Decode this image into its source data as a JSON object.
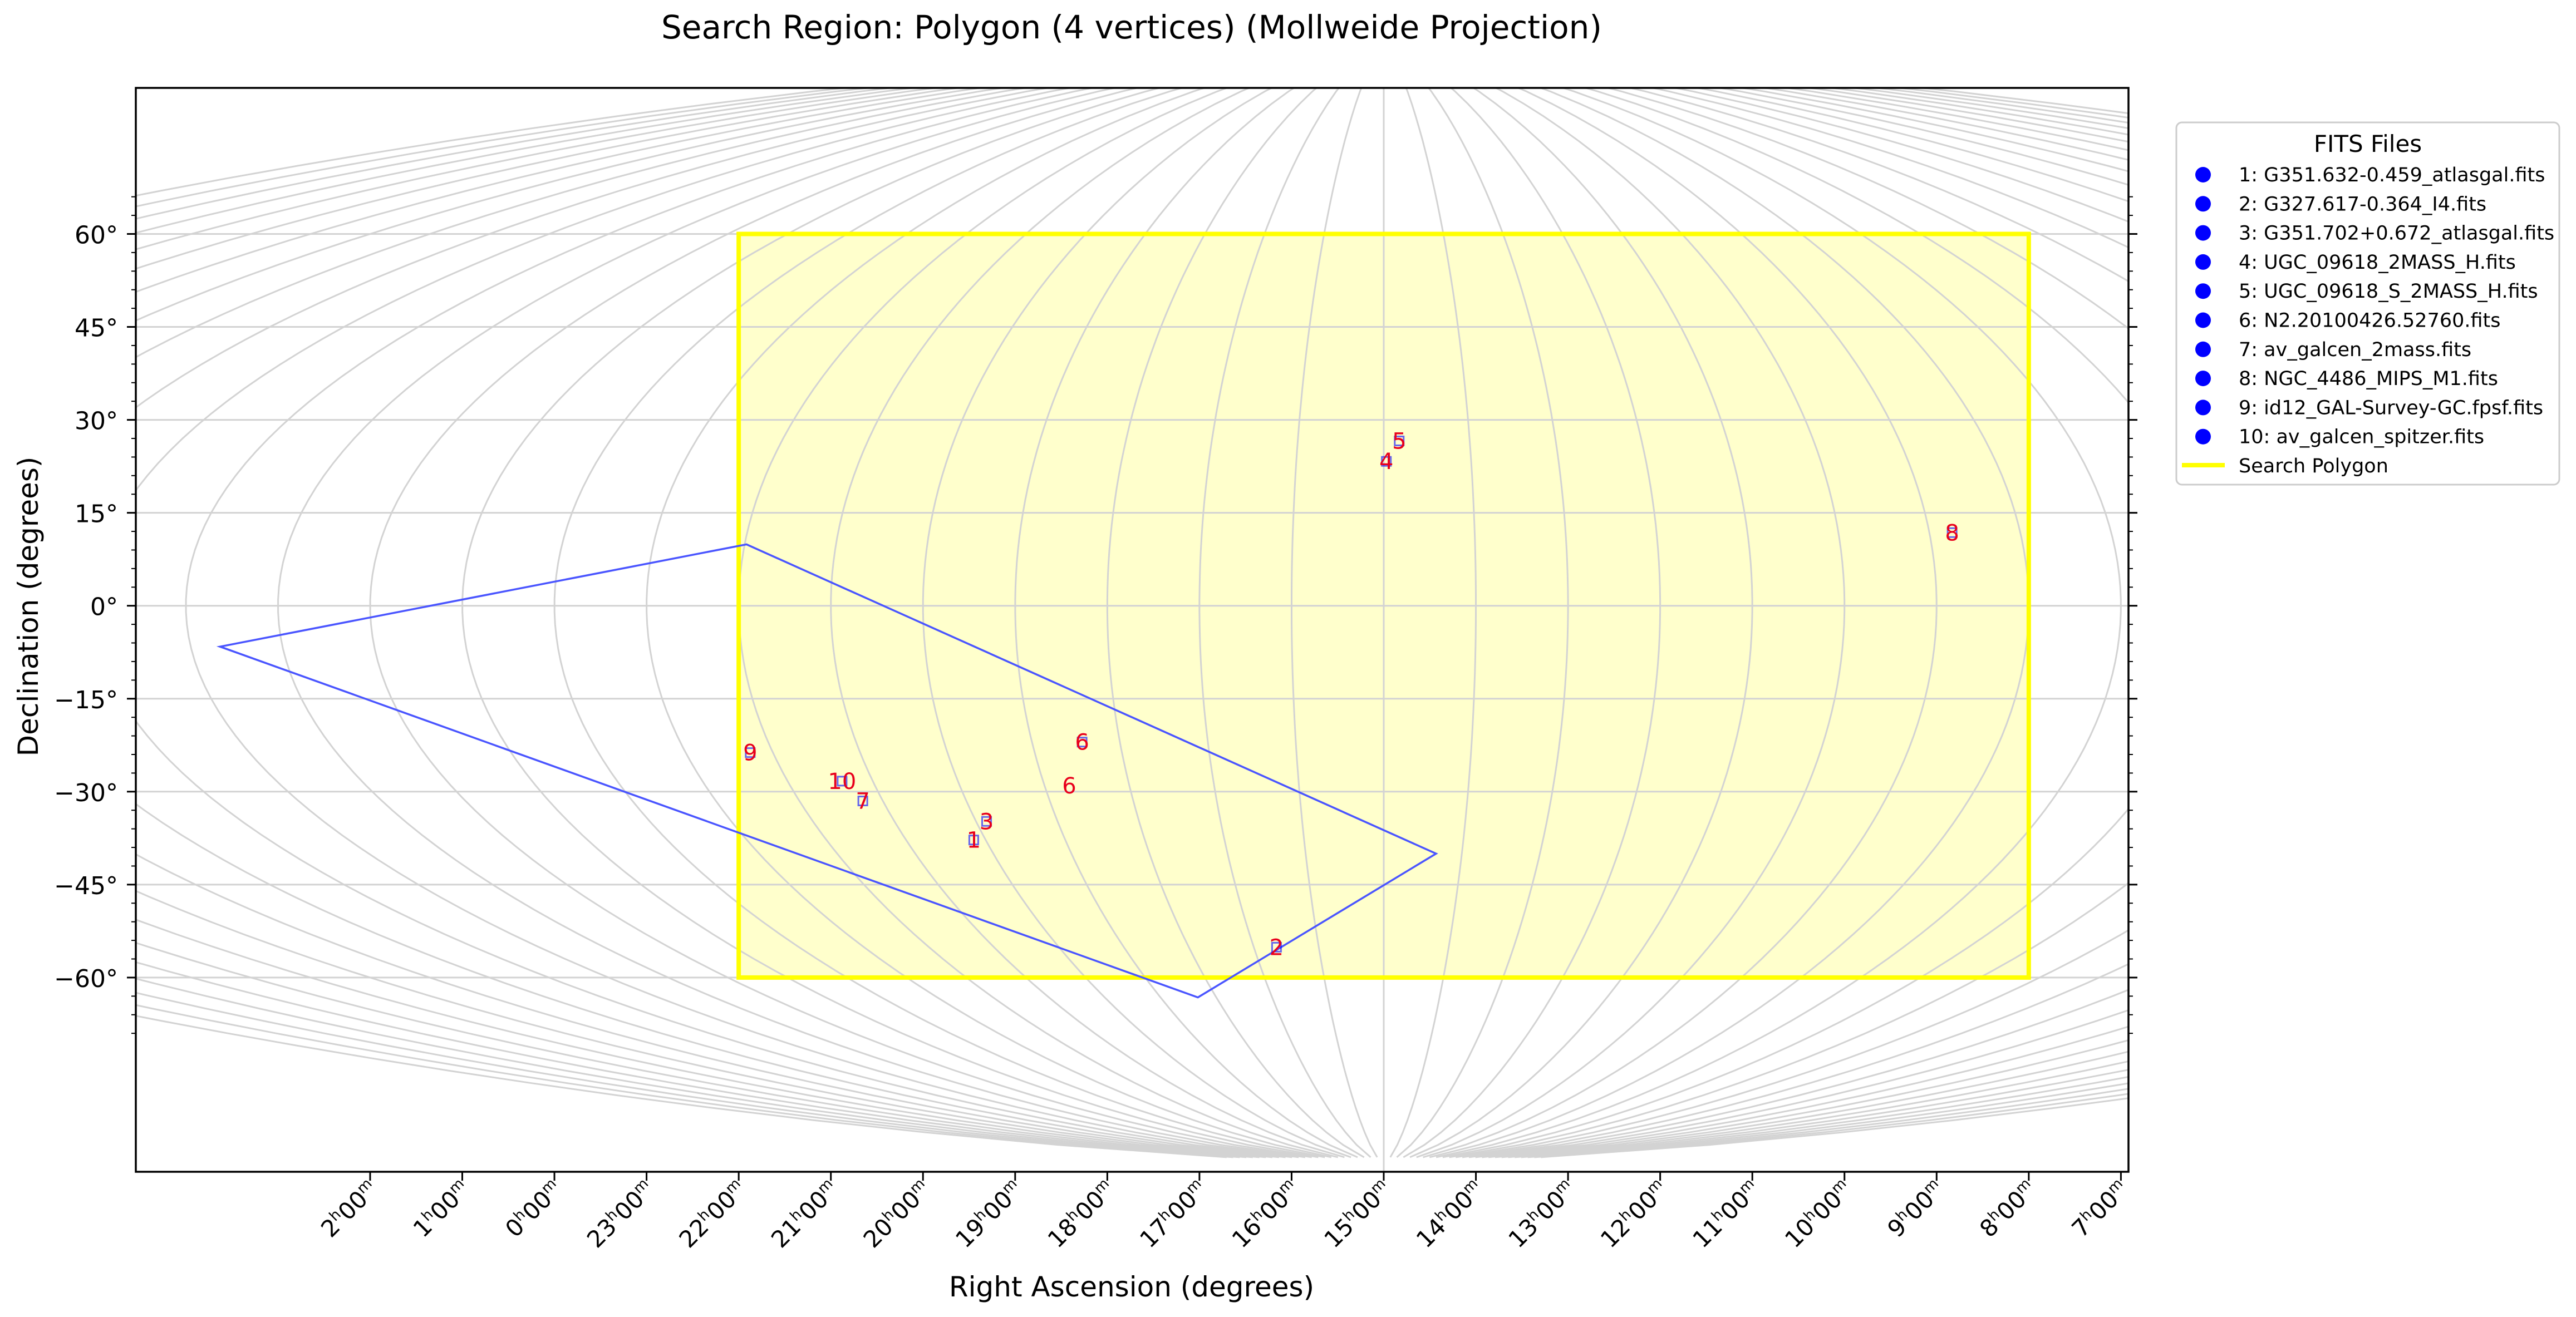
{
  "chart_data": {
    "type": "scatter",
    "title": "Search Region: Polygon (4 vertices) (Mollweide Projection)",
    "xlabel": "Right Ascension (degrees)",
    "ylabel": "Declination (degrees)",
    "ylim": [
      -70,
      68
    ],
    "yticks": [
      {
        "value": 60,
        "label": "60°"
      },
      {
        "value": 45,
        "label": "45°"
      },
      {
        "value": 30,
        "label": "30°"
      },
      {
        "value": 15,
        "label": "15°"
      },
      {
        "value": 0,
        "label": "0°"
      },
      {
        "value": -15,
        "label": "−15°"
      },
      {
        "value": -30,
        "label": "−30°"
      },
      {
        "value": -45,
        "label": "−45°"
      },
      {
        "value": -60,
        "label": "−60°"
      }
    ],
    "xticks": [
      {
        "h": "2",
        "m": "00"
      },
      {
        "h": "1",
        "m": "00"
      },
      {
        "h": "0",
        "m": "00"
      },
      {
        "h": "23",
        "m": "00"
      },
      {
        "h": "22",
        "m": "00"
      },
      {
        "h": "21",
        "m": "00"
      },
      {
        "h": "20",
        "m": "00"
      },
      {
        "h": "19",
        "m": "00"
      },
      {
        "h": "18",
        "m": "00"
      },
      {
        "h": "17",
        "m": "00"
      },
      {
        "h": "16",
        "m": "00"
      },
      {
        "h": "15",
        "m": "00"
      },
      {
        "h": "14",
        "m": "00"
      },
      {
        "h": "13",
        "m": "00"
      },
      {
        "h": "12",
        "m": "00"
      },
      {
        "h": "11",
        "m": "00"
      },
      {
        "h": "10",
        "m": "00"
      },
      {
        "h": "9",
        "m": "00"
      },
      {
        "h": "8",
        "m": "00"
      },
      {
        "h": "7",
        "m": "00"
      }
    ],
    "grid": true,
    "legend": {
      "title": "FITS Files",
      "placement": "outside-right",
      "entries": [
        "1: G351.632-0.459_atlasgal.fits",
        "2: G327.617-0.364_I4.fits",
        "3: G351.702+0.672_atlasgal.fits",
        "4: UGC_09618_2MASS_H.fits",
        "5: UGC_09618_S_2MASS_H.fits",
        "6: N2.20100426.52760.fits",
        "7: av_galcen_2mass.fits",
        "8: NGC_4486_MIPS_M1.fits",
        "9: id12_GAL-Survey-GC.fpsf.fits",
        "10: av_galcen_spitzer.fits"
      ],
      "polygon_entry": "Search Polygon"
    },
    "search_polygon": {
      "ra_range_hours": [
        22,
        8
      ],
      "dec_range": [
        -60,
        60
      ]
    },
    "footprints": [
      {
        "label": "1",
        "ra_h": 20.15,
        "dec": -37.8
      },
      {
        "label": "2",
        "ra_h": 16.65,
        "dec": -55.1
      },
      {
        "label": "3",
        "ra_h": 19.87,
        "dec": -34.8
      },
      {
        "label": "4",
        "ra_h": 14.97,
        "dec": 23.3
      },
      {
        "label": "5",
        "ra_h": 14.82,
        "dec": 26.6
      },
      {
        "label": "6",
        "ra_h": 18.43,
        "dec": -22.0
      },
      {
        "label": "7",
        "ra_h": 21.24,
        "dec": -31.5
      },
      {
        "label": "8",
        "ra_h": 8.75,
        "dec": 11.8
      },
      {
        "label": "9",
        "ra_h": 22.26,
        "dec": -23.7
      },
      {
        "label": "10",
        "ra_h": 21.36,
        "dec": -28.3
      }
    ],
    "large_footprint": {
      "label": "6",
      "vertices": [
        {
          "ra_h": 21.98,
          "dec": 9.9
        },
        {
          "ra_h": 14.33,
          "dec": -40.0
        },
        {
          "ra_h": 18.33,
          "dec": -63.2
        },
        {
          "ra_h": 27.68,
          "dec": -6.6
        }
      ]
    },
    "colors": {
      "polygon_edge": "#ffff00",
      "polygon_fill": "#ffffcc",
      "footprint": "#0000ff",
      "label": "#e8001c",
      "grid": "#d3d3d3"
    }
  }
}
